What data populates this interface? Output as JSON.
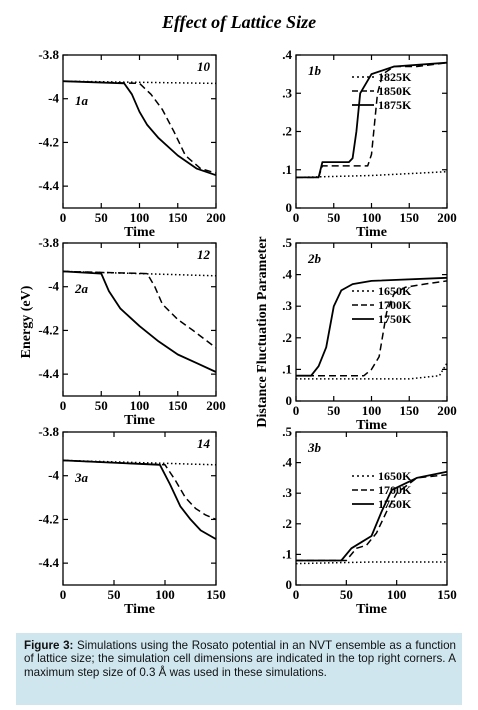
{
  "figure_title": "Effect of Lattice Size",
  "caption": {
    "label": "Figure 3:",
    "text": "Simulations using the Rosato potential in an NVT ensemble as a function of lattice size; the simulation cell dimensions are indicated in the top right corners. A maximum step size of 0.3 Å was used in these simulations."
  },
  "left_ylabel": "Energy (eV)",
  "right_ylabel": "Distance Fluctuation Parameter",
  "chart_data": [
    {
      "panel": "1a",
      "type": "line",
      "annotation": "10",
      "xlabel": "Time",
      "xlim": [
        0,
        200
      ],
      "ylim": [
        -4.5,
        -3.8
      ],
      "xticks": [
        0,
        50,
        100,
        150,
        200
      ],
      "yticks": [
        -3.8,
        -4,
        -4.2,
        -4.4
      ],
      "series": [
        {
          "style": "dotted",
          "x": [
            0,
            200
          ],
          "y": [
            -3.92,
            -3.93
          ]
        },
        {
          "style": "dashed",
          "x": [
            0,
            100,
            115,
            130,
            145,
            160,
            180,
            200
          ],
          "y": [
            -3.92,
            -3.93,
            -3.98,
            -4.05,
            -4.15,
            -4.26,
            -4.32,
            -4.34
          ]
        },
        {
          "style": "solid",
          "x": [
            0,
            80,
            90,
            100,
            110,
            125,
            150,
            175,
            200
          ],
          "y": [
            -3.92,
            -3.93,
            -3.98,
            -4.06,
            -4.12,
            -4.18,
            -4.26,
            -4.32,
            -4.35
          ]
        }
      ]
    },
    {
      "panel": "1b",
      "type": "line",
      "xlabel": "Time",
      "xlim": [
        0,
        200
      ],
      "ylim": [
        0,
        0.4
      ],
      "xticks": [
        0,
        50,
        100,
        150,
        200
      ],
      "yticks": [
        0,
        0.1,
        0.2,
        0.3,
        0.4
      ],
      "legend": [
        "1825K",
        "1850K",
        "1875K"
      ],
      "series": [
        {
          "name": "1825K",
          "style": "dotted",
          "x": [
            0,
            100,
            150,
            200
          ],
          "y": [
            0.08,
            0.085,
            0.09,
            0.095
          ]
        },
        {
          "name": "1850K",
          "style": "dashed",
          "x": [
            0,
            30,
            35,
            95,
            100,
            108,
            115,
            130,
            160,
            200
          ],
          "y": [
            0.08,
            0.08,
            0.11,
            0.11,
            0.14,
            0.3,
            0.35,
            0.37,
            0.37,
            0.38
          ]
        },
        {
          "name": "1875K",
          "style": "solid",
          "x": [
            0,
            30,
            35,
            70,
            75,
            80,
            85,
            100,
            130,
            200
          ],
          "y": [
            0.08,
            0.08,
            0.12,
            0.12,
            0.13,
            0.2,
            0.3,
            0.35,
            0.37,
            0.38
          ]
        }
      ]
    },
    {
      "panel": "2a",
      "type": "line",
      "annotation": "12",
      "xlabel": "Time",
      "xlim": [
        0,
        200
      ],
      "ylim": [
        -4.5,
        -3.8
      ],
      "xticks": [
        0,
        50,
        100,
        150,
        200
      ],
      "yticks": [
        -3.8,
        -4,
        -4.2,
        -4.4
      ],
      "series": [
        {
          "style": "dotted",
          "x": [
            0,
            200
          ],
          "y": [
            -3.93,
            -3.95
          ]
        },
        {
          "style": "dashed",
          "x": [
            0,
            110,
            120,
            130,
            150,
            170,
            200
          ],
          "y": [
            -3.93,
            -3.94,
            -4.0,
            -4.08,
            -4.15,
            -4.2,
            -4.28
          ]
        },
        {
          "style": "solid",
          "x": [
            0,
            50,
            60,
            75,
            100,
            125,
            150,
            175,
            200
          ],
          "y": [
            -3.93,
            -3.94,
            -4.02,
            -4.1,
            -4.18,
            -4.25,
            -4.31,
            -4.35,
            -4.39
          ]
        }
      ]
    },
    {
      "panel": "2b",
      "type": "line",
      "xlabel": "Time",
      "xlim": [
        0,
        200
      ],
      "ylim": [
        0,
        0.5
      ],
      "xticks": [
        0,
        50,
        100,
        150,
        200
      ],
      "yticks": [
        0,
        0.1,
        0.2,
        0.3,
        0.4,
        0.5
      ],
      "legend": [
        "1650K",
        "1700K",
        "1750K"
      ],
      "series": [
        {
          "name": "1650K",
          "style": "dotted",
          "x": [
            0,
            150,
            190,
            200
          ],
          "y": [
            0.07,
            0.07,
            0.08,
            0.12
          ]
        },
        {
          "name": "1700K",
          "style": "dashed",
          "x": [
            0,
            90,
            100,
            110,
            120,
            130,
            145,
            170,
            200
          ],
          "y": [
            0.08,
            0.08,
            0.1,
            0.14,
            0.28,
            0.34,
            0.36,
            0.37,
            0.38
          ]
        },
        {
          "name": "1750K",
          "style": "solid",
          "x": [
            0,
            20,
            30,
            40,
            50,
            60,
            75,
            100,
            200
          ],
          "y": [
            0.08,
            0.08,
            0.11,
            0.17,
            0.3,
            0.35,
            0.37,
            0.38,
            0.39
          ]
        }
      ]
    },
    {
      "panel": "3a",
      "type": "line",
      "annotation": "14",
      "xlabel": "Time",
      "xlim": [
        0,
        150
      ],
      "ylim": [
        -4.5,
        -3.8
      ],
      "xticks": [
        0,
        50,
        100,
        150
      ],
      "yticks": [
        -3.8,
        -4,
        -4.2,
        -4.4
      ],
      "series": [
        {
          "style": "dotted",
          "x": [
            0,
            150
          ],
          "y": [
            -3.93,
            -3.95
          ]
        },
        {
          "style": "dashed",
          "x": [
            0,
            100,
            110,
            120,
            130,
            140,
            150
          ],
          "y": [
            -3.93,
            -3.95,
            -4.02,
            -4.1,
            -4.15,
            -4.18,
            -4.2
          ]
        },
        {
          "style": "solid",
          "x": [
            0,
            95,
            105,
            115,
            125,
            135,
            150
          ],
          "y": [
            -3.93,
            -3.95,
            -4.04,
            -4.14,
            -4.2,
            -4.25,
            -4.29
          ]
        }
      ]
    },
    {
      "panel": "3b",
      "type": "line",
      "xlabel": "Time",
      "xlim": [
        0,
        150
      ],
      "ylim": [
        0,
        0.5
      ],
      "xticks": [
        0,
        50,
        100,
        150
      ],
      "yticks": [
        0,
        0.1,
        0.2,
        0.3,
        0.4,
        0.5
      ],
      "legend": [
        "1650K",
        "1700K",
        "1750K"
      ],
      "series": [
        {
          "name": "1650K",
          "style": "dotted",
          "x": [
            0,
            75,
            150
          ],
          "y": [
            0.07,
            0.075,
            0.075
          ]
        },
        {
          "name": "1700K",
          "style": "dashed",
          "x": [
            0,
            50,
            60,
            70,
            80,
            90,
            100,
            120,
            150
          ],
          "y": [
            0.08,
            0.08,
            0.12,
            0.13,
            0.17,
            0.24,
            0.3,
            0.35,
            0.36
          ]
        },
        {
          "name": "1750K",
          "style": "solid",
          "x": [
            0,
            45,
            55,
            65,
            75,
            85,
            95,
            120,
            150
          ],
          "y": [
            0.08,
            0.08,
            0.12,
            0.14,
            0.16,
            0.24,
            0.31,
            0.35,
            0.37
          ]
        }
      ]
    }
  ]
}
